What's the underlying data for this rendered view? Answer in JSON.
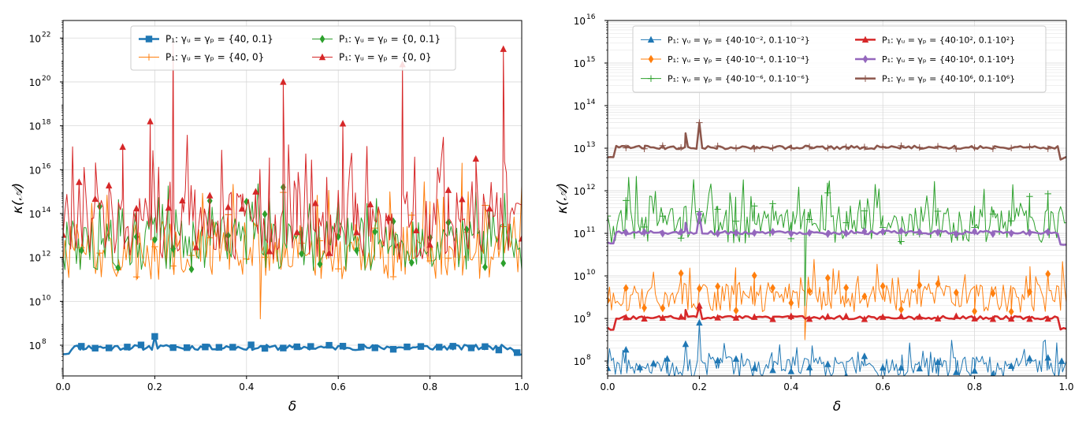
{
  "chart_data": [
    {
      "type": "line",
      "yscale": "log",
      "xlabel": "δ",
      "ylabel": "κ(𝒜)",
      "xlim": [
        0,
        1
      ],
      "ylim_log10": [
        6.6,
        22.8
      ],
      "x_ticks": [
        "0.0",
        "0.2",
        "0.4",
        "0.6",
        "0.8",
        "1.0"
      ],
      "y_tick_exponents": [
        "8",
        "10",
        "12",
        "14",
        "16",
        "18",
        "20",
        "22"
      ],
      "grid": true,
      "legend_position": "top-center",
      "series": [
        {
          "name": "P₁: γᵤ = γₚ = {40, 0.1}",
          "color": "#1f77b4",
          "marker": "square",
          "width": 2.5,
          "base_log10": 7.9,
          "noise": 0.12,
          "spikes": [
            [
              0.2,
              8.4
            ]
          ],
          "marker_x": [
            0.04,
            0.07,
            0.1,
            0.14,
            0.17,
            0.2,
            0.24,
            0.27,
            0.31,
            0.34,
            0.37,
            0.41,
            0.44,
            0.48,
            0.51,
            0.54,
            0.58,
            0.61,
            0.65,
            0.68,
            0.72,
            0.75,
            0.78,
            0.82,
            0.85,
            0.89,
            0.92,
            0.95,
            0.99
          ]
        },
        {
          "name": "P₁: γᵤ = γₚ = {40, 0}",
          "color": "#ff7f0e",
          "marker": "plus",
          "width": 1,
          "base_log10": 12.3,
          "noise": 1.3,
          "spikes": [
            [
              0.43,
              9.2
            ],
            [
              0.87,
              16.3
            ]
          ],
          "marker_x": [
            0.04,
            0.08,
            0.12,
            0.16,
            0.2,
            0.24,
            0.28,
            0.32,
            0.36,
            0.4,
            0.44,
            0.48,
            0.52,
            0.56,
            0.6,
            0.64,
            0.68,
            0.72,
            0.76,
            0.8,
            0.84,
            0.88,
            0.92,
            0.96
          ]
        },
        {
          "name": "P₁: γᵤ = γₚ = {0, 0.1}",
          "color": "#2ca02c",
          "marker": "diamond",
          "width": 1,
          "base_log10": 12.6,
          "noise": 1.2,
          "spikes": [
            [
              0.48,
              15.2
            ]
          ],
          "marker_x": [
            0.04,
            0.08,
            0.12,
            0.16,
            0.2,
            0.24,
            0.28,
            0.32,
            0.36,
            0.4,
            0.44,
            0.48,
            0.52,
            0.56,
            0.6,
            0.64,
            0.68,
            0.72,
            0.76,
            0.8,
            0.84,
            0.88,
            0.92,
            0.96
          ]
        },
        {
          "name": "P₁: γᵤ = γₚ = {0, 0}",
          "color": "#d62728",
          "marker": "triangle",
          "width": 1,
          "base_log10": 13.5,
          "noise": 1.6,
          "spikes": [
            [
              0.19,
              18.2
            ],
            [
              0.24,
              21.8
            ],
            [
              0.48,
              20.0
            ],
            [
              0.61,
              18.1
            ],
            [
              0.74,
              20.8
            ],
            [
              0.96,
              21.5
            ]
          ],
          "marker_x": [
            0.0,
            0.035,
            0.07,
            0.1,
            0.13,
            0.16,
            0.19,
            0.23,
            0.26,
            0.29,
            0.32,
            0.36,
            0.39,
            0.42,
            0.45,
            0.48,
            0.51,
            0.55,
            0.58,
            0.61,
            0.64,
            0.67,
            0.71,
            0.74,
            0.77,
            0.8,
            0.84,
            0.87,
            0.9,
            0.93,
            0.96,
            1.0
          ]
        }
      ]
    },
    {
      "type": "line",
      "yscale": "log",
      "xlabel": "δ",
      "ylabel": "κ(𝒜)",
      "xlim": [
        0,
        1
      ],
      "ylim_log10": [
        7.65,
        16.0
      ],
      "x_ticks": [
        "0.0",
        "0.2",
        "0.4",
        "0.6",
        "0.8",
        "1.0"
      ],
      "y_tick_exponents": [
        "8",
        "9",
        "10",
        "11",
        "12",
        "13",
        "14",
        "15",
        "16"
      ],
      "grid": true,
      "legend_position": "top-center",
      "series": [
        {
          "name": "P₁: γᵤ = γₚ = {40·10⁻², 0.1·10⁻²}",
          "color": "#1f77b4",
          "marker": "triangle",
          "width": 1,
          "base_log10": 7.85,
          "noise": 0.25,
          "spikes": [
            [
              0.17,
              8.4
            ],
            [
              0.2,
              8.9
            ],
            [
              0.95,
              8.45
            ]
          ],
          "marker_x": [
            0.0,
            0.04,
            0.07,
            0.1,
            0.13,
            0.17,
            0.2,
            0.24,
            0.28,
            0.32,
            0.36,
            0.4,
            0.44,
            0.48,
            0.52,
            0.56,
            0.6,
            0.64,
            0.68,
            0.72,
            0.76,
            0.8,
            0.84,
            0.88,
            0.92,
            0.96,
            0.99
          ]
        },
        {
          "name": "P₁: γᵤ = γₚ = {40·10⁻⁴, 0.1·10⁻⁴}",
          "color": "#ff7f0e",
          "marker": "diamond",
          "width": 1,
          "base_log10": 9.5,
          "noise": 0.35,
          "spikes": [
            [
              0.48,
              9.95
            ],
            [
              0.43,
              8.5
            ]
          ],
          "marker_x": [
            0.0,
            0.04,
            0.08,
            0.12,
            0.16,
            0.2,
            0.24,
            0.28,
            0.32,
            0.36,
            0.4,
            0.44,
            0.48,
            0.52,
            0.56,
            0.6,
            0.64,
            0.68,
            0.72,
            0.76,
            0.8,
            0.84,
            0.88,
            0.92,
            0.96
          ]
        },
        {
          "name": "P₁: γᵤ = γₚ = {40·10⁻⁶, 0.1·10⁻⁶}",
          "color": "#2ca02c",
          "marker": "plus",
          "width": 1,
          "base_log10": 11.2,
          "noise": 0.45,
          "spikes": [
            [
              0.43,
              9.3
            ],
            [
              0.48,
              11.95
            ]
          ],
          "marker_x": [
            0.0,
            0.04,
            0.08,
            0.12,
            0.16,
            0.2,
            0.24,
            0.28,
            0.32,
            0.36,
            0.4,
            0.44,
            0.48,
            0.52,
            0.56,
            0.6,
            0.64,
            0.68,
            0.72,
            0.76,
            0.8,
            0.84,
            0.88,
            0.92,
            0.96
          ]
        },
        {
          "name": "P₁: γᵤ = γₚ = {40·10², 0.1·10²}",
          "color": "#d62728",
          "marker": "triangle",
          "width": 2.5,
          "base_log10": 9.02,
          "noise": 0.04,
          "spikes": [
            [
              0.17,
              9.2
            ],
            [
              0.2,
              9.3
            ]
          ],
          "marker_x": [
            0.04,
            0.08,
            0.12,
            0.16,
            0.2,
            0.24,
            0.28,
            0.32,
            0.36,
            0.4,
            0.44,
            0.48,
            0.52,
            0.56,
            0.6,
            0.64,
            0.68,
            0.72,
            0.76,
            0.8,
            0.84,
            0.88,
            0.92,
            0.96
          ]
        },
        {
          "name": "P₁: γᵤ = γₚ = {40·10⁴, 0.1·10⁴}",
          "color": "#9467bd",
          "marker": "diamond",
          "width": 2.5,
          "base_log10": 11.02,
          "noise": 0.04,
          "spikes": [
            [
              0.17,
              11.25
            ],
            [
              0.2,
              11.45
            ]
          ],
          "marker_x": [
            0.04,
            0.08,
            0.12,
            0.16,
            0.2,
            0.24,
            0.28,
            0.32,
            0.36,
            0.4,
            0.44,
            0.48,
            0.52,
            0.56,
            0.6,
            0.64,
            0.68,
            0.72,
            0.76,
            0.8,
            0.84,
            0.88,
            0.92,
            0.96
          ]
        },
        {
          "name": "P₁: γᵤ = γₚ = {40·10⁶, 0.1·10⁶}",
          "color": "#8c564b",
          "marker": "plus",
          "width": 2.5,
          "base_log10": 13.02,
          "noise": 0.04,
          "spikes": [
            [
              0.17,
              13.35
            ],
            [
              0.2,
              13.6
            ]
          ],
          "marker_x": [
            0.04,
            0.08,
            0.12,
            0.16,
            0.2,
            0.24,
            0.28,
            0.32,
            0.36,
            0.4,
            0.44,
            0.48,
            0.52,
            0.56,
            0.6,
            0.64,
            0.68,
            0.72,
            0.76,
            0.8,
            0.84,
            0.88,
            0.92,
            0.96
          ]
        }
      ]
    }
  ]
}
